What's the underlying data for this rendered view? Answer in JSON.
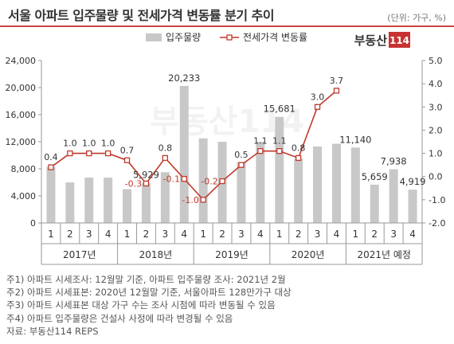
{
  "header": {
    "title": "서울 아파트 입주물량 및 전세가격 변동률 분기 추이",
    "unit": "(단위: 가구, %)"
  },
  "brand": {
    "name": "부동산",
    "num": "114",
    "bg_color": "#c83232"
  },
  "colors": {
    "bar": "#c8c8c8",
    "line": "#c0392b",
    "title_rule": "#c94444",
    "neg_label": "#c0392b"
  },
  "chart_data": {
    "type": "bar+line",
    "legend": {
      "bar_label": "입주물량",
      "line_label": "전세가격 변동률",
      "placement": "top-center"
    },
    "quarters": [
      "1",
      "2",
      "3",
      "4",
      "1",
      "2",
      "3",
      "4",
      "1",
      "2",
      "3",
      "4",
      "1",
      "2",
      "3",
      "4",
      "1",
      "2",
      "3",
      "4"
    ],
    "years": [
      {
        "label": "2017년",
        "span": 4
      },
      {
        "label": "2018년",
        "span": 4
      },
      {
        "label": "2019년",
        "span": 4
      },
      {
        "label": "2020년",
        "span": 4
      },
      {
        "label": "2021년 예정",
        "span": 4
      }
    ],
    "bar_values": [
      8300,
      6000,
      6700,
      6700,
      5000,
      5929,
      7500,
      20233,
      12500,
      12000,
      9000,
      12000,
      15681,
      9500,
      11300,
      11700,
      11140,
      5659,
      7938,
      4919
    ],
    "line_values": [
      0.4,
      1.0,
      1.0,
      1.0,
      0.7,
      -0.3,
      0.8,
      -0.1,
      -1.0,
      -0.2,
      0.5,
      1.1,
      1.1,
      0.8,
      3.0,
      3.7
    ],
    "bar_labels": [
      {
        "index": 5,
        "text": "5,929"
      },
      {
        "index": 7,
        "text": "20,233"
      },
      {
        "index": 12,
        "text": "15,681"
      },
      {
        "index": 16,
        "text": "11,140"
      },
      {
        "index": 17,
        "text": "5,659"
      },
      {
        "index": 18,
        "text": "7,938"
      },
      {
        "index": 19,
        "text": "4,919"
      }
    ],
    "line_labels": [
      "0.4",
      "1.0",
      "1.0",
      "1.0",
      "0.7",
      "-0.3",
      "0.8",
      "-0.1",
      "-1.0",
      "-0.2",
      "0.5",
      "1.1",
      "1.1",
      "0.8",
      "3.0",
      "3.7"
    ],
    "y_left": {
      "min": 0,
      "max": 24000,
      "ticks": [
        0,
        4000,
        8000,
        12000,
        16000,
        20000,
        24000
      ],
      "tick_labels": [
        "0",
        "4,000",
        "8,000",
        "12,000",
        "16,000",
        "20,000",
        "24,000"
      ]
    },
    "y_right": {
      "min": -2.0,
      "max": 5.0,
      "ticks": [
        -2,
        -1,
        0,
        1,
        2,
        3,
        4,
        5
      ],
      "tick_labels": [
        "-2.0",
        "-1.0",
        "0.0",
        "1.0",
        "2.0",
        "3.0",
        "4.0",
        "5.0"
      ]
    },
    "grid": false
  },
  "notes": [
    "주1) 아파트 시세조사: 12월말 기준, 아파트 입주물량 조사: 2021년 2월",
    "주2) 아파트 시세표본: 2020년 12월말 기준, 서울아파트 128만가구 대상",
    "주3) 아파트 시세표본 대상 가구 수는 조사 시점에 따라 변동될 수 있음",
    "주4) 아파트 입주물량은 건설사 사정에 따라 변경될 수 있음",
    "자료: 부동산114 REPS"
  ]
}
